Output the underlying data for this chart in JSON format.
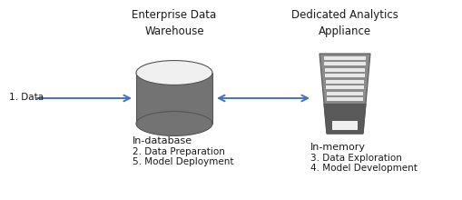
{
  "bg_color": "#ffffff",
  "arrow_color": "#4472c4",
  "cylinder_color": "#737373",
  "cylinder_top_color": "#f0f0f0",
  "cylinder_edge": "#555555",
  "server_body": "#8c8c8c",
  "server_dark": "#5a5a5a",
  "server_stripe": "#e8e8e8",
  "server_edge": "#555555",
  "text_color": "#1a1a1a",
  "title1": "Enterprise Data\nWarehouse",
  "title2": "Dedicated Analytics\nAppliance",
  "label_db": "In-database",
  "label_mem": "In-memory",
  "step1": "1. Data",
  "step2": "2. Data Preparation",
  "step5": "5. Model Deployment",
  "step3": "3. Data Exploration",
  "step4": "4. Model Development",
  "figw": 5.09,
  "figh": 2.2,
  "dpi": 100
}
